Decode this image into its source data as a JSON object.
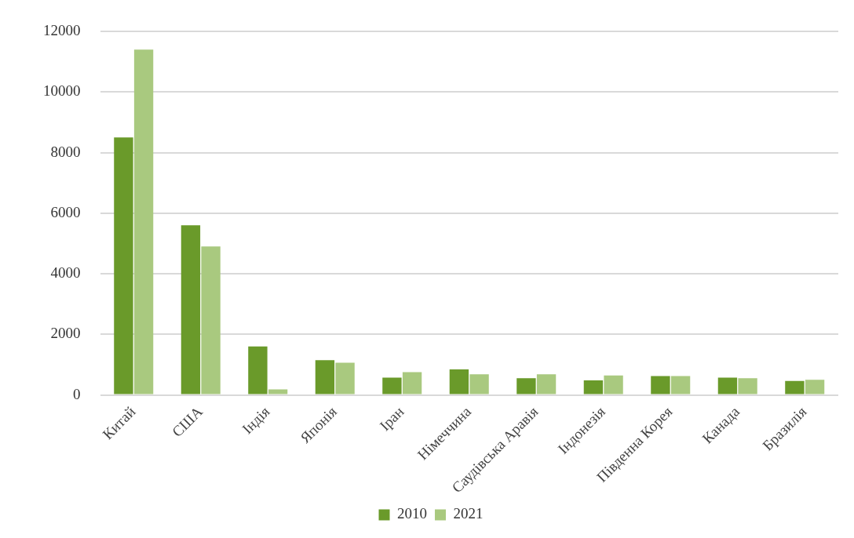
{
  "chart_data": {
    "type": "bar",
    "categories": [
      "Китай",
      "США",
      "Індія",
      "Японія",
      "Іран",
      "Німеччина",
      "Саудівська Аравія",
      "Індонезія",
      "Південна Корея",
      "Канада",
      "Бразилія"
    ],
    "series": [
      {
        "name": "2010",
        "color": "#6a9a2a",
        "values": [
          8500,
          5600,
          1600,
          1150,
          570,
          840,
          550,
          480,
          620,
          570,
          460
        ]
      },
      {
        "name": "2021",
        "color": "#a9c97f",
        "values": [
          11400,
          4900,
          180,
          1060,
          750,
          680,
          680,
          640,
          620,
          550,
          500
        ]
      }
    ],
    "ylim": [
      0,
      12000
    ],
    "yticks": [
      0,
      2000,
      4000,
      6000,
      8000,
      10000,
      12000
    ],
    "grid": "y",
    "legend": "bottom"
  }
}
